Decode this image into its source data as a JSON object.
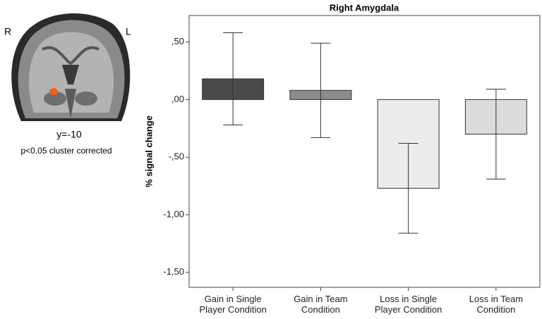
{
  "brain_panel": {
    "left_label": "R",
    "right_label": "L",
    "slice": "y=-10",
    "note": "p<0.05 cluster  corrected"
  },
  "chart_data": {
    "type": "bar",
    "title": "Right Amygdala",
    "y_label": "% signal change",
    "categories": [
      "Gain in Single Player Condition",
      "Gain in Team Condition",
      "Loss in Single Player Condition",
      "Loss in Team Condition"
    ],
    "values": [
      0.18,
      0.08,
      -0.77,
      -0.3
    ],
    "errors": [
      0.4,
      0.41,
      0.39,
      0.39
    ],
    "colors": [
      "#4a4a4a",
      "#8c8c8c",
      "#ececec",
      "#dcdcdc"
    ],
    "ylim": [
      -1.63,
      0.73
    ],
    "yticks": [
      {
        "value": 0.5,
        "label": ",50"
      },
      {
        "value": 0,
        "label": ",00"
      },
      {
        "value": -0.5,
        "label": "-,50"
      },
      {
        "value": -1,
        "label": "-1,00"
      },
      {
        "value": -1.5,
        "label": "-1,50"
      }
    ],
    "grid": false
  }
}
